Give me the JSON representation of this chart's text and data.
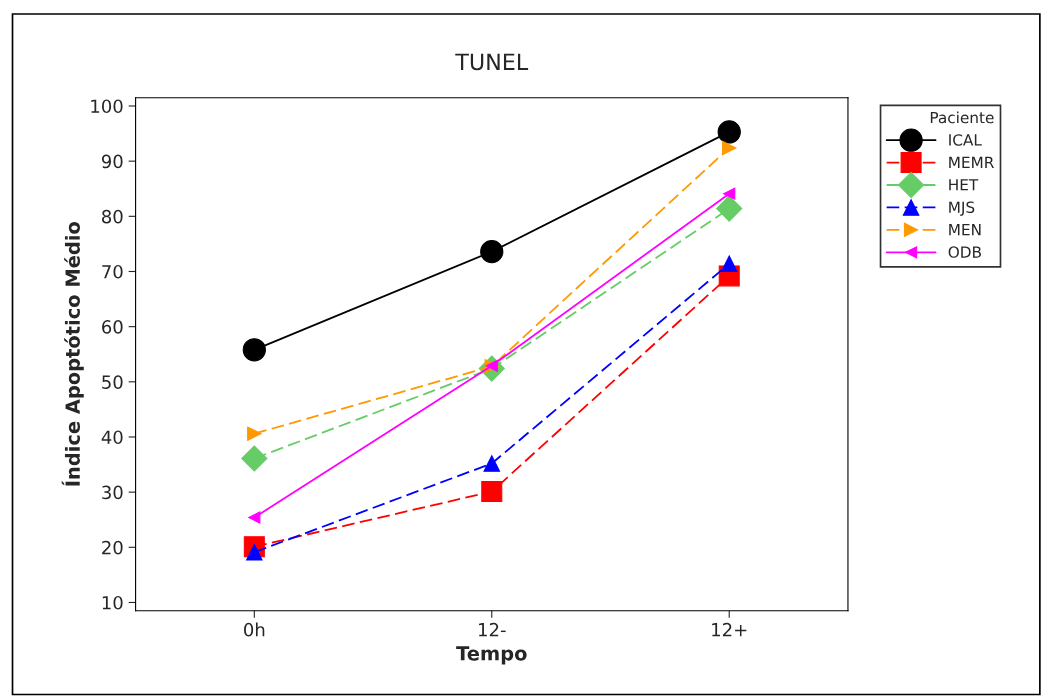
{
  "chart_data": {
    "type": "line",
    "title": "TUNEL",
    "xlabel": "Tempo",
    "ylabel": "Índice Apoptótico Médio",
    "legend_title": "Paciente",
    "legend": "right",
    "grid": false,
    "categories": [
      "0h",
      "12-",
      "12+"
    ],
    "ylim": [
      8.5,
      101.5
    ],
    "yticks": [
      10,
      20,
      30,
      40,
      50,
      60,
      70,
      80,
      90,
      100
    ],
    "series": [
      {
        "name": "ICAL",
        "color": "#000000",
        "marker": "circle",
        "line_style": "solid",
        "values": [
          55.8,
          73.6,
          95.3
        ]
      },
      {
        "name": "MEMR",
        "color": "#ff0000",
        "marker": "square",
        "line_style": "dashed",
        "values": [
          20.1,
          30.1,
          69.2
        ]
      },
      {
        "name": "HET",
        "color": "#66cc66",
        "marker": "diamond",
        "line_style": "dashed",
        "values": [
          36.1,
          52.4,
          81.4
        ]
      },
      {
        "name": "MJS",
        "color": "#0000ff",
        "marker": "triangle",
        "line_style": "dashed",
        "values": [
          19.1,
          35.2,
          71.4
        ]
      },
      {
        "name": "MEN",
        "color": "#ff9900",
        "marker": "triangle_right",
        "line_style": "dashed",
        "values": [
          40.6,
          52.8,
          92.4
        ]
      },
      {
        "name": "ODB",
        "color": "#ff00ff",
        "marker": "triangle_left",
        "line_style": "solid",
        "values": [
          25.4,
          52.9,
          84.1
        ]
      }
    ]
  }
}
